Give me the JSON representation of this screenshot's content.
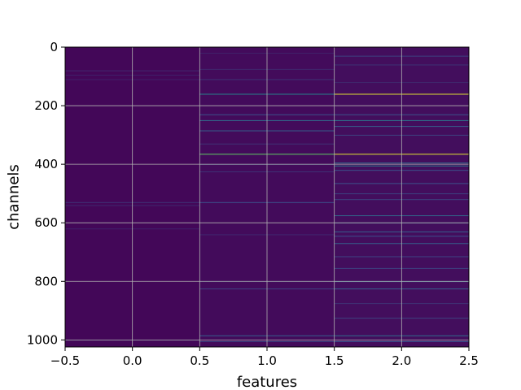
{
  "chart_data": {
    "type": "heatmap",
    "title": "",
    "xlabel": "features",
    "ylabel": "channels",
    "xlim": [
      -0.5,
      2.5
    ],
    "ylim": [
      1024,
      0
    ],
    "y_inverted": true,
    "grid": true,
    "colormap": "viridis",
    "xticks": [
      -0.5,
      0.0,
      0.5,
      1.0,
      1.5,
      2.0,
      2.5
    ],
    "xtick_labels": [
      "−0.5",
      "0.0",
      "0.5",
      "1.0",
      "1.5",
      "2.0",
      "2.5"
    ],
    "yticks": [
      0,
      200,
      400,
      600,
      800,
      1000
    ],
    "ytick_labels": [
      "0",
      "200",
      "400",
      "600",
      "800",
      "1000"
    ],
    "columns": [
      {
        "feature": 0,
        "background_value": 0.02,
        "highlights": [
          {
            "channel": 80,
            "value": 0.12
          },
          {
            "channel": 95,
            "value": 0.1
          },
          {
            "channel": 110,
            "value": 0.1
          },
          {
            "channel": 530,
            "value": 0.15
          },
          {
            "channel": 540,
            "value": 0.12
          },
          {
            "channel": 620,
            "value": 0.1
          },
          {
            "channel": 1000,
            "value": 0.1
          }
        ]
      },
      {
        "feature": 1,
        "background_value": 0.03,
        "highlights": [
          {
            "channel": 20,
            "value": 0.1
          },
          {
            "channel": 75,
            "value": 0.12
          },
          {
            "channel": 110,
            "value": 0.15
          },
          {
            "channel": 160,
            "value": 0.45
          },
          {
            "channel": 230,
            "value": 0.25
          },
          {
            "channel": 250,
            "value": 0.35
          },
          {
            "channel": 285,
            "value": 0.3
          },
          {
            "channel": 330,
            "value": 0.15
          },
          {
            "channel": 365,
            "value": 0.75
          },
          {
            "channel": 400,
            "value": 0.15
          },
          {
            "channel": 425,
            "value": 0.15
          },
          {
            "channel": 530,
            "value": 0.25
          },
          {
            "channel": 640,
            "value": 0.12
          },
          {
            "channel": 800,
            "value": 0.12
          },
          {
            "channel": 825,
            "value": 0.2
          },
          {
            "channel": 985,
            "value": 0.3
          },
          {
            "channel": 1005,
            "value": 0.2
          }
        ]
      },
      {
        "feature": 2,
        "background_value": 0.04,
        "highlights": [
          {
            "channel": 30,
            "value": 0.2
          },
          {
            "channel": 60,
            "value": 0.15
          },
          {
            "channel": 120,
            "value": 0.12
          },
          {
            "channel": 160,
            "value": 0.95
          },
          {
            "channel": 230,
            "value": 0.25
          },
          {
            "channel": 250,
            "value": 0.4
          },
          {
            "channel": 270,
            "value": 0.3
          },
          {
            "channel": 300,
            "value": 0.2
          },
          {
            "channel": 365,
            "value": 0.95
          },
          {
            "channel": 395,
            "value": 0.35
          },
          {
            "channel": 405,
            "value": 0.4
          },
          {
            "channel": 420,
            "value": 0.25
          },
          {
            "channel": 465,
            "value": 0.25
          },
          {
            "channel": 500,
            "value": 0.2
          },
          {
            "channel": 520,
            "value": 0.2
          },
          {
            "channel": 575,
            "value": 0.35
          },
          {
            "channel": 600,
            "value": 0.2
          },
          {
            "channel": 630,
            "value": 0.3
          },
          {
            "channel": 645,
            "value": 0.25
          },
          {
            "channel": 670,
            "value": 0.3
          },
          {
            "channel": 715,
            "value": 0.2
          },
          {
            "channel": 755,
            "value": 0.2
          },
          {
            "channel": 800,
            "value": 0.3
          },
          {
            "channel": 825,
            "value": 0.3
          },
          {
            "channel": 875,
            "value": 0.15
          },
          {
            "channel": 925,
            "value": 0.2
          },
          {
            "channel": 985,
            "value": 0.35
          },
          {
            "channel": 1005,
            "value": 0.25
          }
        ]
      }
    ]
  }
}
